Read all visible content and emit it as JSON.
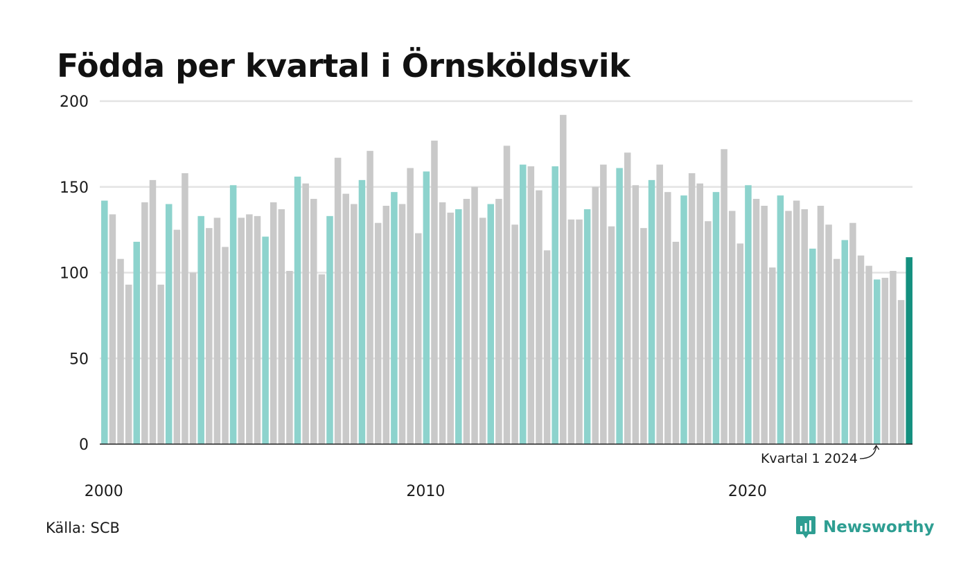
{
  "title": "Födda per kvartal i Örnsköldsvik",
  "source": "Källa: SCB",
  "brand": {
    "name": "Newsworthy",
    "icon": "newsworthy-logo-icon"
  },
  "colors": {
    "q1": "#8dd3cd",
    "other": "#c9c9c9",
    "highlight": "#14907f",
    "axis": "#222222",
    "grid": "#e3e3e3"
  },
  "chart_data": {
    "type": "bar",
    "title": "Födda per kvartal i Örnsköldsvik",
    "xlabel": "",
    "ylabel": "",
    "ylim": [
      0,
      200
    ],
    "yticks": [
      0,
      50,
      100,
      150,
      200
    ],
    "xticks": [
      "2000",
      "2010",
      "2020"
    ],
    "grid": true,
    "start_year": 2000,
    "values": [
      142,
      134,
      108,
      93,
      118,
      141,
      154,
      93,
      140,
      125,
      158,
      100,
      133,
      126,
      132,
      115,
      151,
      132,
      134,
      133,
      121,
      141,
      137,
      101,
      156,
      152,
      143,
      99,
      133,
      167,
      146,
      140,
      154,
      171,
      129,
      139,
      147,
      140,
      161,
      123,
      159,
      177,
      141,
      135,
      137,
      143,
      150,
      132,
      140,
      143,
      174,
      128,
      163,
      162,
      148,
      113,
      162,
      192,
      131,
      131,
      137,
      150,
      163,
      127,
      161,
      170,
      151,
      126,
      154,
      163,
      147,
      118,
      145,
      158,
      152,
      130,
      147,
      172,
      136,
      117,
      151,
      143,
      139,
      103,
      145,
      136,
      142,
      137,
      114,
      139,
      128,
      108,
      119,
      129,
      110,
      104,
      96,
      97,
      101,
      84,
      109
    ],
    "annotation": {
      "label": "Kvartal 1 2024",
      "index": 96
    }
  }
}
